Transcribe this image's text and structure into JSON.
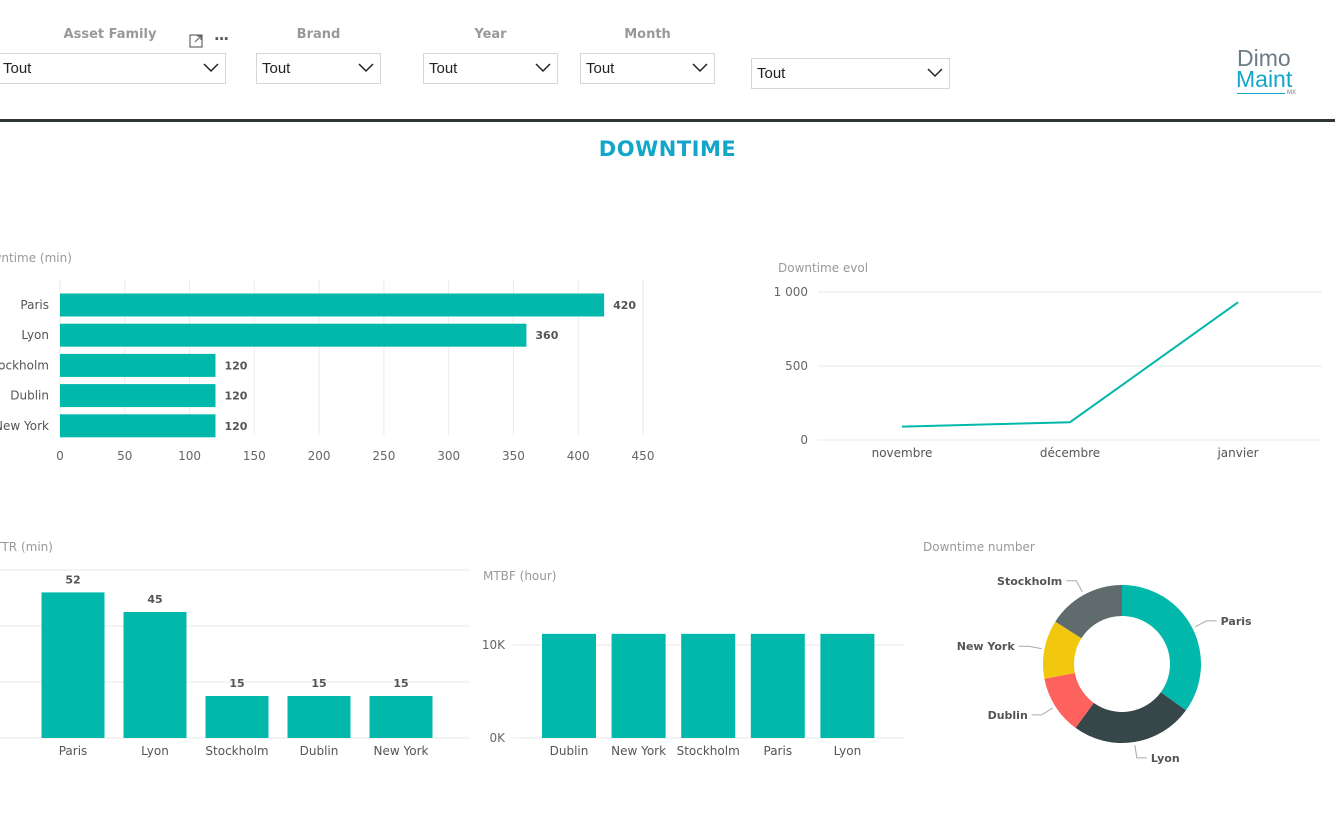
{
  "filters": {
    "asset_family": {
      "label": "Asset Family",
      "value": "Tout"
    },
    "brand": {
      "label": "Brand",
      "value": "Tout"
    },
    "year": {
      "label": "Year",
      "value": "Tout"
    },
    "month": {
      "label": "Month",
      "value": "Tout"
    },
    "extra": {
      "value": "Tout"
    }
  },
  "visual_header": {
    "focus_icon": "focus-mode-icon",
    "more_icon": "more-options-icon",
    "more_glyph": "···"
  },
  "logo": {
    "line1": "Dimo",
    "line2": "Maint",
    "sub": "MX"
  },
  "page_title": "DOWNTIME",
  "colors": {
    "teal": "#01b8aa",
    "title": "#12a6c8",
    "dark": "#374649",
    "red": "#fd625e",
    "yellow": "#f2c80f",
    "gray": "#5f6b6d"
  },
  "chart_data": [
    {
      "id": "downtime_bar",
      "type": "bar",
      "orientation": "horizontal",
      "title": "Downtime (min)",
      "categories": [
        "Paris",
        "Lyon",
        "Stockholm",
        "Dublin",
        "New York"
      ],
      "values": [
        420,
        360,
        120,
        120,
        120
      ],
      "xlim": [
        0,
        450
      ],
      "xticks": [
        "0",
        "50",
        "100",
        "150",
        "200",
        "250",
        "300",
        "350",
        "400",
        "450"
      ],
      "grid": true
    },
    {
      "id": "downtime_evol",
      "type": "line",
      "title": "Downtime evol",
      "x": [
        "novembre",
        "décembre",
        "janvier"
      ],
      "values": [
        90,
        120,
        930
      ],
      "ylim": [
        0,
        1000
      ],
      "yticks": [
        "0",
        "500",
        "1 000"
      ],
      "grid": true
    },
    {
      "id": "mttr",
      "type": "bar",
      "title": "MTTR (min)",
      "categories": [
        "Paris",
        "Lyon",
        "Stockholm",
        "Dublin",
        "New York"
      ],
      "values": [
        52,
        45,
        15,
        15,
        15
      ],
      "ylim": [
        0,
        60
      ],
      "grid": true
    },
    {
      "id": "mtbf",
      "type": "bar",
      "title": "MTBF (hour)",
      "categories": [
        "Dublin",
        "New York",
        "Stockholm",
        "Paris",
        "Lyon"
      ],
      "values": [
        11200,
        11200,
        11200,
        11200,
        11200
      ],
      "ylim": [
        0,
        15000
      ],
      "yticks": [
        "0K",
        "10K"
      ],
      "grid": true
    },
    {
      "id": "downtime_number",
      "type": "pie",
      "title": "Downtime number",
      "labels": [
        "Paris",
        "Lyon",
        "Dublin",
        "New York",
        "Stockholm"
      ],
      "values": [
        35,
        25,
        12,
        12,
        16
      ]
    }
  ]
}
